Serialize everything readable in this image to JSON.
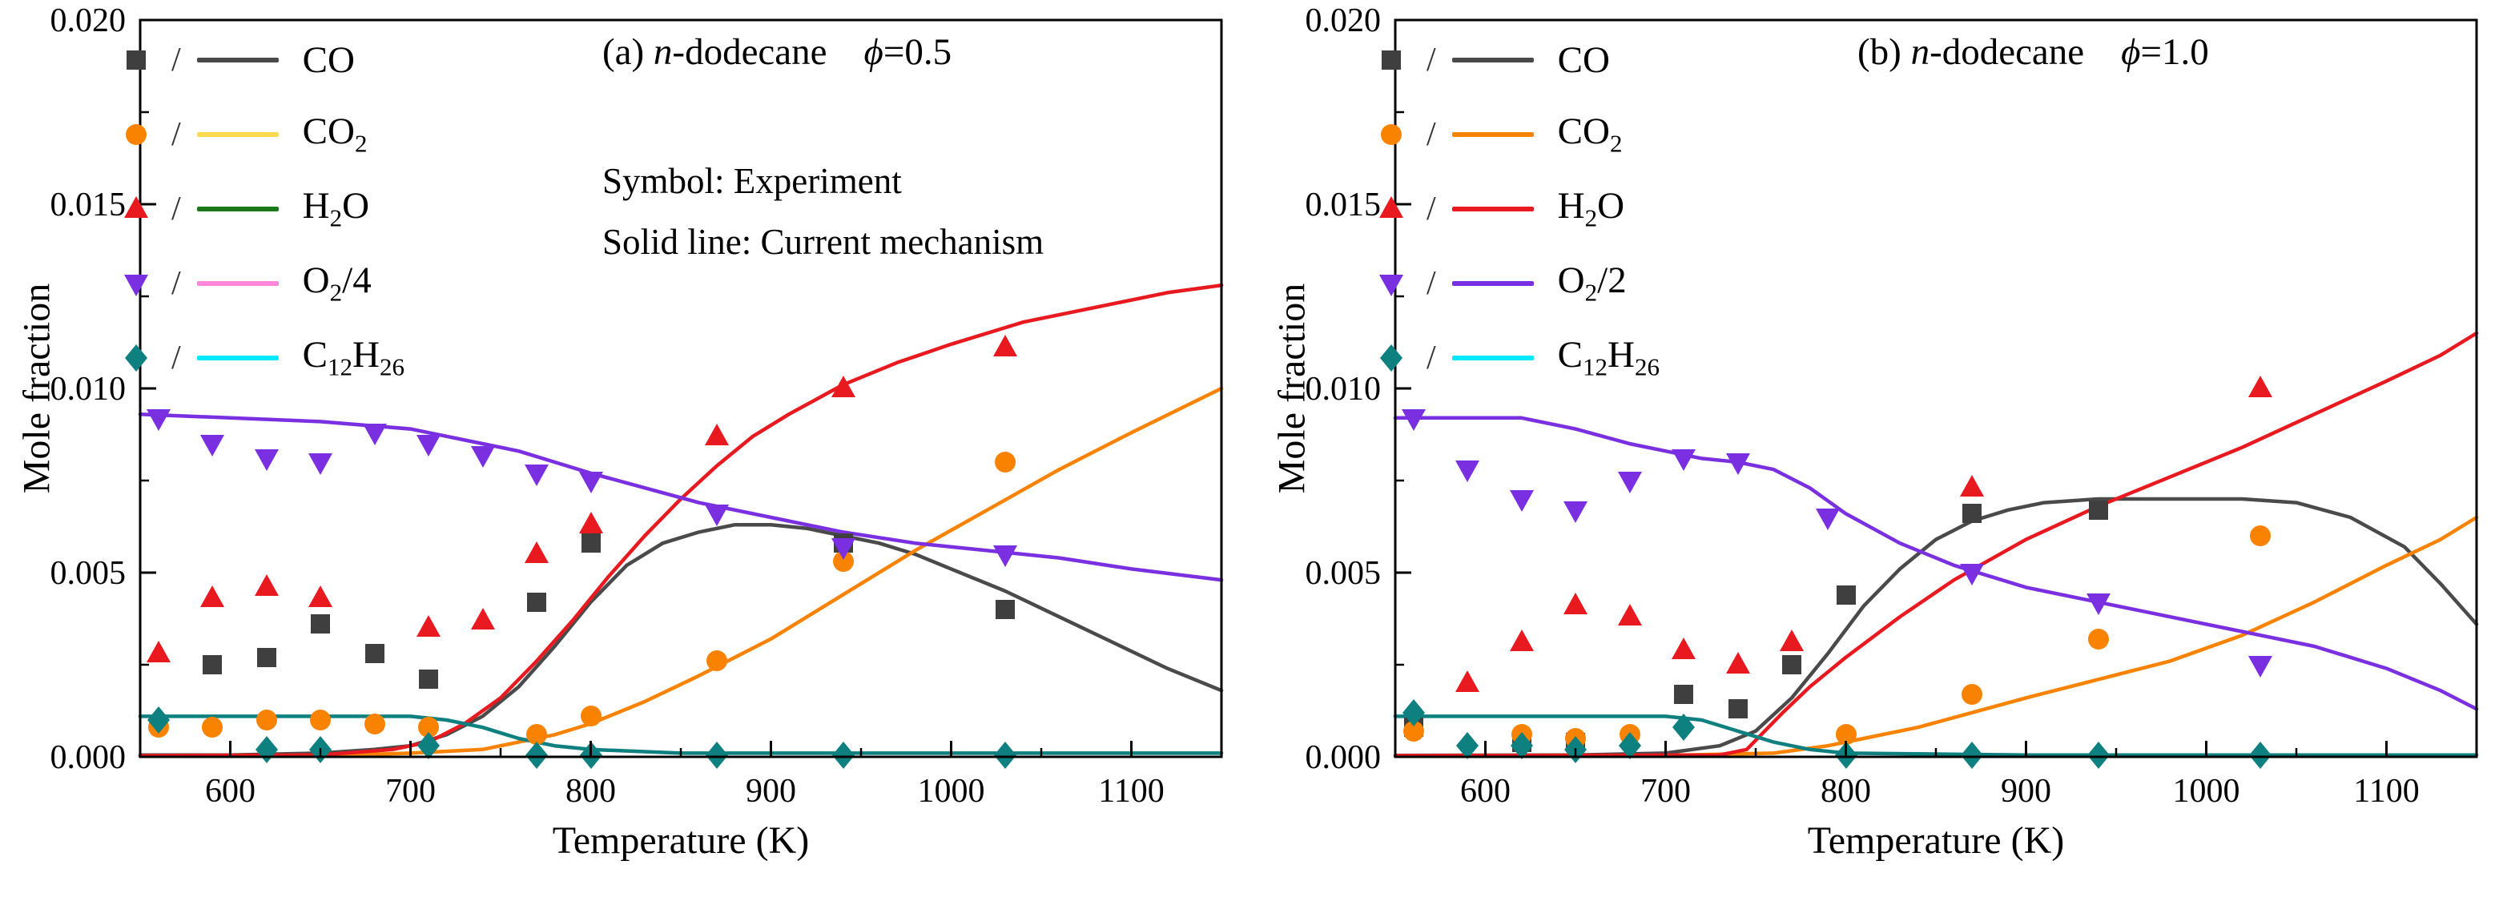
{
  "figure": {
    "background": "#ffffff",
    "legend_separator": "/",
    "panels": [
      {
        "name": "a",
        "title": {
          "prefix": "(a) ",
          "italic_n": "n",
          "compound_rest": "-dodecane",
          "phi": "ϕ",
          "phi_eq": "=0.5"
        },
        "notes": [
          "Symbol: Experiment",
          "Solid line: Current mechanism"
        ]
      },
      {
        "name": "b",
        "title": {
          "prefix": "(b) ",
          "italic_n": "n",
          "compound_rest": "-dodecane",
          "phi": "ϕ",
          "phi_eq": "=1.0"
        },
        "notes": []
      }
    ]
  },
  "chart_data": [
    {
      "type": "scatter",
      "title": "(a) n-dodecane ϕ=0.5",
      "xlabel": "Temperature (K)",
      "ylabel": "Mole fraction",
      "xlim": [
        550,
        1150
      ],
      "ylim": [
        0,
        0.02
      ],
      "xticks": [
        600,
        700,
        800,
        900,
        1000,
        1100
      ],
      "yticks": [
        0,
        0.005,
        0.01,
        0.015,
        0.02
      ],
      "ytick_labels": [
        "0.000",
        "0.005",
        "0.010",
        "0.015",
        "0.020"
      ],
      "x_minor_step": 50,
      "y_minor_step": 0.0025,
      "grid": false,
      "legend_position": "top-left",
      "annotations": [
        "Symbol: Experiment",
        "Solid line: Current mechanism"
      ],
      "series": [
        {
          "key": "co",
          "label": "CO",
          "symbol": "square",
          "symbol_color": "#3f3f3f",
          "line_color": "#4a4a4a",
          "legend_line_color": "#4a4a4a",
          "experiment": {
            "x": [
              590,
              620,
              650,
              680,
              710,
              770,
              800,
              940,
              1030
            ],
            "y": [
              0.0025,
              0.0027,
              0.0036,
              0.0028,
              0.0021,
              0.0042,
              0.0058,
              0.0058,
              0.004
            ]
          },
          "model": {
            "x": [
              550,
              600,
              650,
              680,
              700,
              720,
              740,
              760,
              780,
              800,
              820,
              840,
              860,
              880,
              900,
              920,
              940,
              960,
              980,
              1000,
              1030,
              1060,
              1090,
              1120,
              1150
            ],
            "y": [
              5e-05,
              5e-05,
              0.0001,
              0.0002,
              0.0003,
              0.0006,
              0.0011,
              0.0019,
              0.003,
              0.0042,
              0.0052,
              0.0058,
              0.0061,
              0.0063,
              0.0063,
              0.0062,
              0.006,
              0.0058,
              0.0055,
              0.0051,
              0.0045,
              0.0038,
              0.0031,
              0.0024,
              0.0018
            ]
          }
        },
        {
          "key": "co2",
          "label": "CO2",
          "symbol": "circle",
          "symbol_color": "#f98300",
          "line_color": "#f98300",
          "legend_line_color": "#ffd94d",
          "experiment": {
            "x": [
              560,
              590,
              620,
              650,
              680,
              710,
              770,
              800,
              870,
              940,
              1030
            ],
            "y": [
              0.0008,
              0.0008,
              0.001,
              0.001,
              0.0009,
              0.0008,
              0.0006,
              0.0011,
              0.0026,
              0.0053,
              0.008
            ]
          },
          "model": {
            "x": [
              550,
              650,
              700,
              740,
              760,
              780,
              800,
              830,
              860,
              900,
              940,
              980,
              1020,
              1060,
              1100,
              1150
            ],
            "y": [
              2e-05,
              3e-05,
              0.0001,
              0.0002,
              0.0004,
              0.0006,
              0.0009,
              0.0015,
              0.0022,
              0.0032,
              0.0044,
              0.0056,
              0.0067,
              0.0078,
              0.0088,
              0.01
            ]
          }
        },
        {
          "key": "h2o",
          "label": "H2O",
          "symbol": "triangle-up",
          "symbol_color": "#e8191f",
          "line_color": "#e8191f",
          "legend_line_color": "#1a7a1a",
          "experiment": {
            "x": [
              560,
              590,
              620,
              650,
              710,
              740,
              770,
              800,
              870,
              940,
              1030
            ],
            "y": [
              0.0028,
              0.0043,
              0.0046,
              0.0043,
              0.0035,
              0.0037,
              0.0055,
              0.0063,
              0.0087,
              0.01,
              0.0111
            ]
          },
          "model": {
            "x": [
              550,
              650,
              690,
              710,
              730,
              750,
              770,
              790,
              810,
              830,
              850,
              870,
              890,
              910,
              940,
              970,
              1000,
              1040,
              1080,
              1120,
              1150
            ],
            "y": [
              3e-05,
              5e-05,
              0.0002,
              0.0004,
              0.0009,
              0.0016,
              0.0026,
              0.0037,
              0.0049,
              0.006,
              0.007,
              0.0079,
              0.0087,
              0.0093,
              0.0101,
              0.0107,
              0.0112,
              0.0118,
              0.0122,
              0.0126,
              0.0128
            ]
          }
        },
        {
          "key": "o2",
          "label": "O2/4",
          "symbol": "triangle-down",
          "symbol_color": "#7a2fe0",
          "line_color": "#7a2fe0",
          "legend_line_color": "#ff85db",
          "experiment": {
            "x": [
              560,
              590,
              620,
              650,
              680,
              710,
              740,
              770,
              800,
              870,
              940,
              1030
            ],
            "y": [
              0.0092,
              0.0085,
              0.0081,
              0.008,
              0.0088,
              0.0085,
              0.0082,
              0.0077,
              0.0075,
              0.0066,
              0.0057,
              0.0055
            ]
          },
          "model": {
            "x": [
              550,
              600,
              650,
              700,
              720,
              740,
              760,
              780,
              800,
              830,
              860,
              900,
              940,
              980,
              1020,
              1060,
              1100,
              1150
            ],
            "y": [
              0.0093,
              0.0092,
              0.0091,
              0.0089,
              0.0087,
              0.0085,
              0.0083,
              0.008,
              0.0077,
              0.0073,
              0.0069,
              0.0065,
              0.0061,
              0.0058,
              0.0056,
              0.0054,
              0.0051,
              0.0048
            ]
          }
        },
        {
          "key": "c12h26",
          "label": "C12H26",
          "symbol": "diamond",
          "symbol_color": "#0f8080",
          "line_color": "#0f8080",
          "legend_line_color": "#00e8ff",
          "experiment": {
            "x": [
              560,
              620,
              650,
              710,
              770,
              800,
              870,
              940,
              1030
            ],
            "y": [
              0.001,
              0.0002,
              0.0002,
              0.0003,
              5e-05,
              5e-05,
              5e-05,
              5e-05,
              5e-05
            ]
          },
          "model": {
            "x": [
              550,
              700,
              720,
              740,
              760,
              780,
              800,
              850,
              900,
              1000,
              1150
            ],
            "y": [
              0.0011,
              0.0011,
              0.001,
              0.0008,
              0.0005,
              0.0003,
              0.0002,
              0.0001,
              0.0001,
              0.0001,
              0.0001
            ]
          }
        }
      ]
    },
    {
      "type": "scatter",
      "title": "(b) n-dodecane ϕ=1.0",
      "xlabel": "Temperature (K)",
      "ylabel": "Mole fraction",
      "xlim": [
        550,
        1150
      ],
      "ylim": [
        0,
        0.02
      ],
      "xticks": [
        600,
        700,
        800,
        900,
        1000,
        1100
      ],
      "yticks": [
        0,
        0.005,
        0.01,
        0.015,
        0.02
      ],
      "ytick_labels": [
        "0.000",
        "0.005",
        "0.010",
        "0.015",
        "0.020"
      ],
      "x_minor_step": 50,
      "y_minor_step": 0.0025,
      "grid": false,
      "legend_position": "top-left",
      "annotations": [],
      "series": [
        {
          "key": "co",
          "label": "CO",
          "symbol": "square",
          "symbol_color": "#3f3f3f",
          "line_color": "#4a4a4a",
          "legend_line_color": "#4a4a4a",
          "experiment": {
            "x": [
              560,
              620,
              650,
              710,
              740,
              770,
              800,
              870,
              940
            ],
            "y": [
              0.0008,
              0.0004,
              0.0004,
              0.0017,
              0.0013,
              0.0025,
              0.0044,
              0.0066,
              0.0067
            ]
          },
          "model": {
            "x": [
              550,
              650,
              700,
              730,
              750,
              770,
              790,
              810,
              830,
              850,
              870,
              890,
              910,
              940,
              980,
              1020,
              1050,
              1080,
              1110,
              1130,
              1150
            ],
            "y": [
              4e-05,
              5e-05,
              0.0001,
              0.0003,
              0.0007,
              0.0016,
              0.0028,
              0.0041,
              0.0051,
              0.0059,
              0.0064,
              0.0067,
              0.0069,
              0.007,
              0.007,
              0.007,
              0.0069,
              0.0065,
              0.0057,
              0.0047,
              0.0036
            ]
          }
        },
        {
          "key": "co2",
          "label": "CO2",
          "symbol": "circle",
          "symbol_color": "#f98300",
          "line_color": "#f98300",
          "legend_line_color": "#f98300",
          "experiment": {
            "x": [
              560,
              620,
              650,
              680,
              800,
              870,
              940,
              1030
            ],
            "y": [
              0.0007,
              0.0006,
              0.0005,
              0.0006,
              0.0006,
              0.0017,
              0.0032,
              0.006
            ]
          },
          "model": {
            "x": [
              550,
              700,
              760,
              790,
              810,
              840,
              870,
              900,
              940,
              980,
              1020,
              1060,
              1100,
              1130,
              1150
            ],
            "y": [
              2e-05,
              4e-05,
              0.0001,
              0.0003,
              0.0005,
              0.0008,
              0.0012,
              0.0016,
              0.0021,
              0.0026,
              0.0033,
              0.0042,
              0.0052,
              0.0059,
              0.0065
            ]
          }
        },
        {
          "key": "h2o",
          "label": "H2O",
          "symbol": "triangle-up",
          "symbol_color": "#e8191f",
          "line_color": "#e8191f",
          "legend_line_color": "#e8191f",
          "experiment": {
            "x": [
              590,
              620,
              650,
              680,
              710,
              740,
              770,
              870,
              1030
            ],
            "y": [
              0.002,
              0.0031,
              0.0041,
              0.0038,
              0.0029,
              0.0025,
              0.0031,
              0.0073,
              0.01
            ]
          },
          "model": {
            "x": [
              550,
              730,
              745,
              755,
              765,
              780,
              800,
              830,
              860,
              900,
              940,
              980,
              1020,
              1060,
              1100,
              1130,
              1150
            ],
            "y": [
              3e-05,
              5e-05,
              0.0002,
              0.0007,
              0.0012,
              0.0019,
              0.0027,
              0.0038,
              0.0048,
              0.0059,
              0.0068,
              0.0076,
              0.0084,
              0.0093,
              0.0102,
              0.0109,
              0.0115
            ]
          }
        },
        {
          "key": "o2",
          "label": "O2/2",
          "symbol": "triangle-down",
          "symbol_color": "#7a2fe0",
          "line_color": "#7a2fe0",
          "legend_line_color": "#7a2fe0",
          "experiment": {
            "x": [
              560,
              590,
              620,
              650,
              680,
              710,
              740,
              790,
              870,
              940,
              1030
            ],
            "y": [
              0.0092,
              0.0078,
              0.007,
              0.0067,
              0.0075,
              0.0081,
              0.008,
              0.0065,
              0.005,
              0.0042,
              0.0025
            ]
          },
          "model": {
            "x": [
              550,
              600,
              620,
              650,
              680,
              700,
              720,
              740,
              760,
              780,
              800,
              830,
              860,
              900,
              940,
              980,
              1020,
              1060,
              1100,
              1130,
              1150
            ],
            "y": [
              0.0092,
              0.0092,
              0.0092,
              0.0089,
              0.0085,
              0.0083,
              0.0081,
              0.008,
              0.0078,
              0.0073,
              0.0066,
              0.0058,
              0.0052,
              0.0046,
              0.0042,
              0.0038,
              0.0034,
              0.003,
              0.0024,
              0.0018,
              0.0013
            ]
          }
        },
        {
          "key": "c12h26",
          "label": "C12H26",
          "symbol": "diamond",
          "symbol_color": "#0f8080",
          "line_color": "#0f8080",
          "legend_line_color": "#00e8ff",
          "experiment": {
            "x": [
              560,
              590,
              620,
              650,
              680,
              710,
              800,
              870,
              940,
              1030
            ],
            "y": [
              0.0012,
              0.0003,
              0.0003,
              0.0002,
              0.0003,
              0.0008,
              5e-05,
              5e-05,
              5e-05,
              5e-05
            ]
          },
          "model": {
            "x": [
              550,
              700,
              720,
              740,
              760,
              780,
              800,
              900,
              1150
            ],
            "y": [
              0.0011,
              0.0011,
              0.001,
              0.0007,
              0.0004,
              0.0002,
              0.0001,
              5e-05,
              5e-05
            ]
          }
        }
      ]
    }
  ]
}
